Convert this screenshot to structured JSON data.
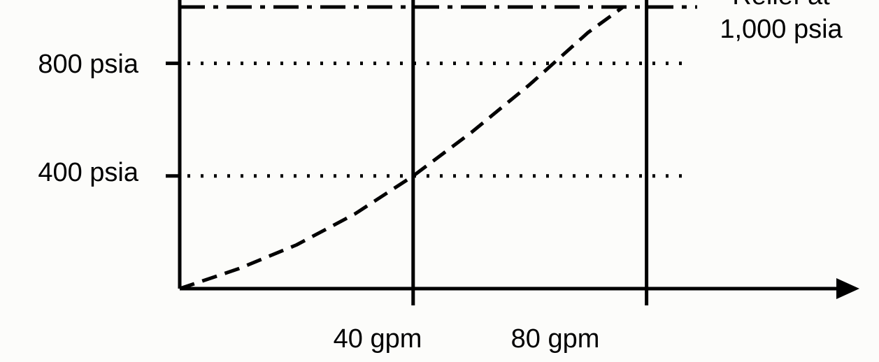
{
  "chart_data": {
    "type": "line",
    "title": "",
    "xlabel": "",
    "ylabel": "",
    "x_ticks": [
      {
        "value": 40,
        "label": "40 gpm"
      },
      {
        "value": 80,
        "label": "80 gpm"
      }
    ],
    "y_ticks": [
      {
        "value": 400,
        "label": "400 psia"
      },
      {
        "value": 800,
        "label": "800 psia"
      }
    ],
    "xlim": [
      0,
      113
    ],
    "ylim": [
      0,
      1000
    ],
    "series": [
      {
        "name": "",
        "style": "dashed",
        "x": [
          0,
          10,
          20,
          30,
          40,
          50,
          60,
          70,
          76
        ],
        "y": [
          0,
          70,
          155,
          265,
          400,
          555,
          725,
          910,
          1000
        ]
      }
    ],
    "annotations": [
      {
        "style": "dash-dot",
        "y": 1000,
        "label_lines": [
          "Relief at",
          "1,000 psia"
        ]
      }
    ],
    "grid": {
      "horizontal": "dotted",
      "vertical": "solid"
    },
    "colors": {
      "background": "#fcfcfa",
      "ink": "#000000"
    }
  }
}
